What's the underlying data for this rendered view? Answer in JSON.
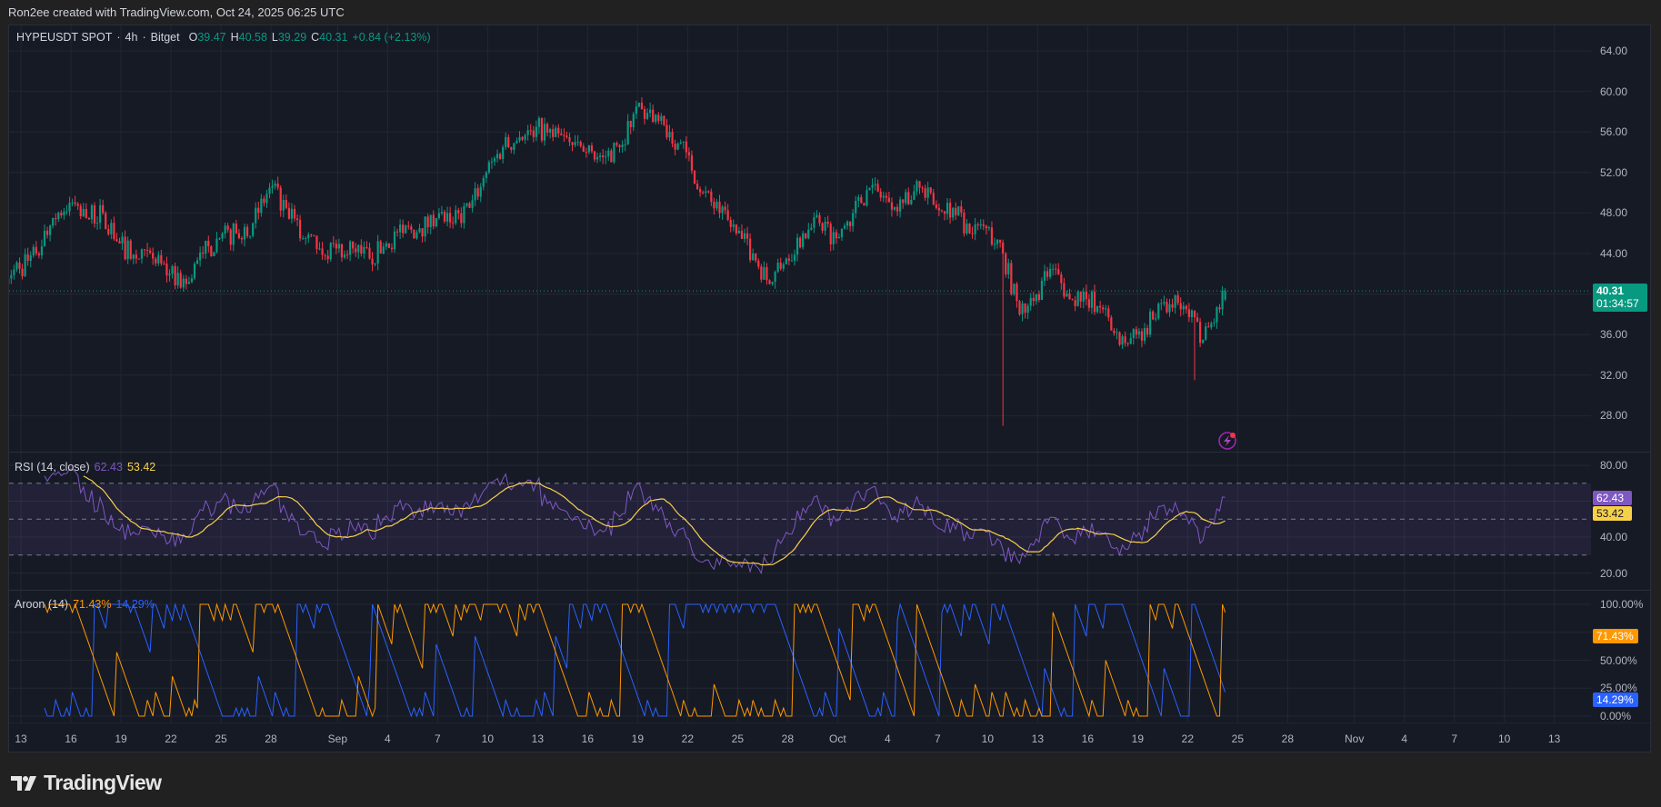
{
  "credit": "Ron2ee created with TradingView.com, Oct 24, 2025 06:25 UTC",
  "symbol": {
    "name": "HYPEUSDT SPOT",
    "interval": "4h",
    "exchange": "Bitget",
    "sep": "·",
    "O": "39.47",
    "H": "40.58",
    "L": "39.29",
    "C": "40.31",
    "change": "+0.84 (+2.13%)"
  },
  "price_tag": {
    "price": "40.31",
    "countdown": "01:34:57"
  },
  "rsi": {
    "label": "RSI (14, close)",
    "value": "62.43",
    "ma": "53.42"
  },
  "aroon": {
    "label": "Aroon (14)",
    "up": "71.43%",
    "down": "14.29%"
  },
  "logo": {
    "text": "TradingView"
  },
  "colors": {
    "up": "#089981",
    "down": "#f23645",
    "rsi": "#7e57c2",
    "rsi_ma": "#f7d04a",
    "aroon_up": "#ff9800",
    "aroon_down": "#2962ff",
    "background": "#161a25"
  },
  "icons": {
    "alert": "lightning-bolt-icon"
  },
  "chart_data": {
    "type": "candlestick",
    "symbol": "HYPEUSDT",
    "interval": "4h",
    "price_axis": {
      "ticks": [
        "64.00",
        "60.00",
        "56.00",
        "52.00",
        "48.00",
        "44.00",
        "36.00",
        "32.00",
        "28.00"
      ],
      "grid": [
        64,
        60,
        56,
        52,
        48,
        44,
        40,
        36,
        32,
        28
      ]
    },
    "rsi_axis": {
      "ticks": [
        "80.00",
        "40.00",
        "20.00"
      ],
      "grid": [
        80,
        60,
        40,
        20
      ],
      "bands": [
        70,
        50,
        30
      ]
    },
    "aroon_axis": {
      "ticks": [
        "100.00%",
        "50.00%",
        "25.00%",
        "0.00%"
      ],
      "grid": [
        100,
        75,
        50,
        25,
        0
      ]
    },
    "time_axis": [
      {
        "label": "13",
        "date": "2025-08-13"
      },
      {
        "label": "16",
        "date": "2025-08-16"
      },
      {
        "label": "19",
        "date": "2025-08-19"
      },
      {
        "label": "22",
        "date": "2025-08-22"
      },
      {
        "label": "25",
        "date": "2025-08-25"
      },
      {
        "label": "28",
        "date": "2025-08-28"
      },
      {
        "label": "Sep",
        "date": "2025-09-01"
      },
      {
        "label": "4",
        "date": "2025-09-04"
      },
      {
        "label": "7",
        "date": "2025-09-07"
      },
      {
        "label": "10",
        "date": "2025-09-10"
      },
      {
        "label": "13",
        "date": "2025-09-13"
      },
      {
        "label": "16",
        "date": "2025-09-16"
      },
      {
        "label": "19",
        "date": "2025-09-19"
      },
      {
        "label": "22",
        "date": "2025-09-22"
      },
      {
        "label": "25",
        "date": "2025-09-25"
      },
      {
        "label": "28",
        "date": "2025-09-28"
      },
      {
        "label": "Oct",
        "date": "2025-10-01"
      },
      {
        "label": "4",
        "date": "2025-10-04"
      },
      {
        "label": "7",
        "date": "2025-10-07"
      },
      {
        "label": "10",
        "date": "2025-10-10"
      },
      {
        "label": "13",
        "date": "2025-10-13"
      },
      {
        "label": "16",
        "date": "2025-10-16"
      },
      {
        "label": "19",
        "date": "2025-10-19"
      },
      {
        "label": "22",
        "date": "2025-10-22"
      },
      {
        "label": "25",
        "date": "2025-10-25"
      },
      {
        "label": "28",
        "date": "2025-10-28"
      },
      {
        "label": "Nov",
        "date": "2025-11-01"
      },
      {
        "label": "4",
        "date": "2025-11-04"
      },
      {
        "label": "7",
        "date": "2025-11-07"
      },
      {
        "label": "10",
        "date": "2025-11-10"
      },
      {
        "label": "13",
        "date": "2025-11-13"
      }
    ],
    "start_date": "2025-08-12",
    "daily_close": [
      42.5,
      44,
      47.5,
      49,
      47.5,
      48,
      45,
      43.5,
      43.5,
      42,
      41,
      44,
      45.5,
      46,
      47,
      50.5,
      48.5,
      45.5,
      44.5,
      44.5,
      44.5,
      43.5,
      45,
      46,
      46.5,
      47.5,
      47,
      48.5,
      52,
      54.5,
      55.5,
      56.5,
      55.5,
      55,
      54,
      53.5,
      54.5,
      58.5,
      57,
      56,
      54,
      50,
      48,
      46,
      44,
      41,
      43.5,
      46,
      47,
      45.5,
      48,
      50.5,
      49.5,
      49,
      50.5,
      48.5,
      48.5,
      46,
      46.5,
      44,
      38,
      40,
      42.5,
      39.5,
      39.5,
      38.5,
      35,
      36,
      37.5,
      39,
      38.5,
      35.5,
      38.5,
      40.31
    ],
    "wick_lows": [
      {
        "time": "2025-10-10 20:00",
        "low": 27.0
      },
      {
        "time": "2025-10-22 08:00",
        "low": 31.5
      }
    ],
    "last_candle": {
      "open": 39.47,
      "high": 40.58,
      "low": 39.29,
      "close": 40.31
    }
  }
}
